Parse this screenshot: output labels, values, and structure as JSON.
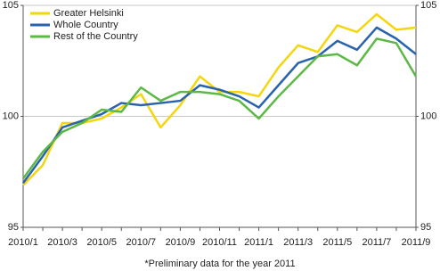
{
  "chart_data": {
    "type": "line",
    "categories": [
      "2010/1",
      null,
      "2010/3",
      null,
      "2010/5",
      null,
      "2010/7",
      null,
      "2010/9",
      null,
      "2010/11",
      null,
      "2011/1",
      null,
      "2011/3",
      null,
      "2011/5",
      null,
      "2011/7",
      null,
      "2011/9"
    ],
    "series": [
      {
        "name": "Greater Helsinki",
        "color": "#f5d50e",
        "values": [
          96.9,
          97.8,
          99.7,
          99.7,
          99.9,
          100.4,
          101.0,
          99.5,
          100.5,
          101.8,
          101.1,
          101.1,
          100.9,
          102.2,
          103.2,
          102.9,
          104.1,
          103.8,
          104.6,
          103.9,
          104.0
        ]
      },
      {
        "name": "Whole Country",
        "color": "#2a63ad",
        "values": [
          97.0,
          98.2,
          99.5,
          99.8,
          100.1,
          100.6,
          100.5,
          100.6,
          100.7,
          101.4,
          101.2,
          100.9,
          100.4,
          101.4,
          102.4,
          102.7,
          103.4,
          103.0,
          104.0,
          103.5,
          102.8
        ]
      },
      {
        "name": "Rest of the Country",
        "color": "#5cb946",
        "values": [
          97.2,
          98.4,
          99.3,
          99.7,
          100.3,
          100.2,
          101.3,
          100.7,
          101.1,
          101.1,
          101.0,
          100.7,
          99.9,
          100.9,
          101.8,
          102.7,
          102.8,
          102.3,
          103.5,
          103.3,
          101.8
        ]
      }
    ],
    "ylim": [
      95,
      105
    ],
    "yticks": [
      95,
      100,
      105
    ],
    "y2lim": [
      95,
      105
    ],
    "y2ticks": [
      95,
      100,
      105
    ],
    "grid": true,
    "legend": "top-left",
    "footnote": "*Preliminary data for the year 2011"
  }
}
